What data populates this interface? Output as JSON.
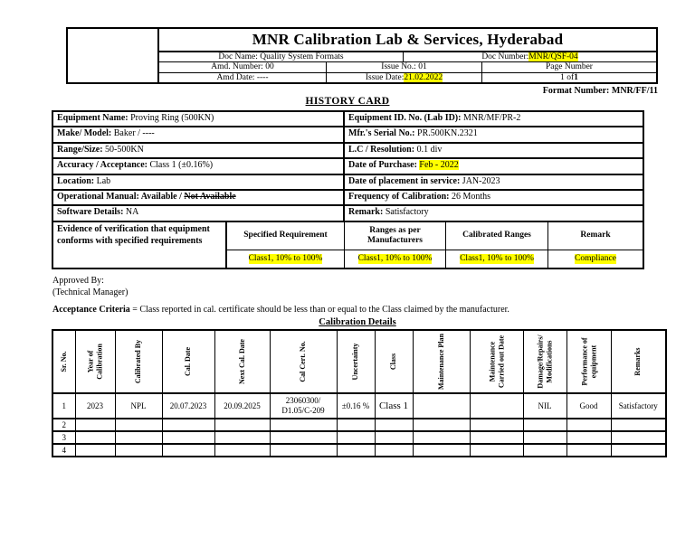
{
  "colors": {
    "highlight": "#ffff00",
    "border": "#000000",
    "background": "#ffffff"
  },
  "doc_header": {
    "title": "MNR Calibration Lab & Services, Hyderabad",
    "doc_name": "Doc Name: Quality System Formats",
    "doc_number_label": "Doc Number: ",
    "doc_number_value": "MNR/QSF-04",
    "amd_number": "Amd. Number: 00",
    "issue_no": "Issue No.: 01",
    "page_number_heading": "Page Number",
    "amd_date": "Amd Date: ----",
    "issue_date_label": "Issue Date: ",
    "issue_date_value": "21.02.2022",
    "page_value_normal": "1 of ",
    "page_value_bold": "1",
    "format_number": "Format Number: MNR/FF/11"
  },
  "history_card": {
    "heading": "HISTORY CARD",
    "rows": [
      {
        "left": {
          "label": "Equipment Name:",
          "value": " Proving Ring (500KN)"
        },
        "right": {
          "label": "Equipment ID. No. (Lab ID):",
          "value": " MNR/MF/PR-2"
        }
      },
      {
        "left": {
          "label": "Make/ Model:",
          "value": " Baker / ----"
        },
        "right": {
          "label": "Mfr.'s Serial  No.:",
          "value": " PR.500KN.2321"
        }
      },
      {
        "left": {
          "label": "Range/Size:",
          "value": " 50-500KN"
        },
        "right": {
          "label": "L.C / Resolution:",
          "value": " 0.1 div"
        }
      },
      {
        "left": {
          "label": "Accuracy / Acceptance:",
          "value": " Class 1 (±0.16%)"
        },
        "right": {
          "label": "Date of Purchase: ",
          "value": "Feb - 2022"
        }
      },
      {
        "left": {
          "label": "Location:",
          "value": " Lab"
        },
        "right": {
          "label": "Date of placement in service:",
          "value": " JAN-2023"
        }
      },
      {
        "left": {
          "label": "Operational Manual:",
          "value": " Available / ",
          "strike": "Not Available"
        },
        "right": {
          "label": "Frequency of Calibration:",
          "value": " 26 Months"
        }
      },
      {
        "left": {
          "label": "Software Details:",
          "value": " NA"
        },
        "right": {
          "label": "Remark:",
          "value": " Satisfactory"
        }
      }
    ],
    "evidence": {
      "label": "Evidence of verification that equipment conforms with specified requirements",
      "headers": [
        "Specified Requirement",
        "Ranges as per Manufacturers",
        "Calibrated Ranges",
        "Remark"
      ],
      "values": [
        "Class1, 10% to 100%",
        "Class1, 10% to 100%",
        "Class1, 10% to 100%",
        "Compliance"
      ]
    }
  },
  "approval": {
    "line1": "Approved By:",
    "line2": "(Technical Manager)"
  },
  "acceptance": {
    "label": "Acceptance Criteria",
    "text": " = Class reported in cal. certificate should be less than or equal to the Class claimed by the manufacturer."
  },
  "calibration": {
    "heading": "Calibration Details",
    "columns": [
      "Sr. No.",
      "Year of Calibration",
      "Calibrated By",
      "Cal. Date",
      "Next Cal. Date",
      "Cal Cert. No.",
      "Uncertainty",
      "Class",
      "Maintenance Plan",
      "Maintenance Carried out Date",
      "Damage/Repairs/ Modifications",
      "Performance of equipment",
      "Remarks"
    ],
    "rows": [
      [
        "1",
        "2023",
        "NPL",
        "20.07.2023",
        "20.09.2025",
        "23060300/\nD1.05/C-209",
        "±0.16 %",
        "Class 1",
        "",
        "",
        "NIL",
        "Good",
        "Satisfactory"
      ],
      [
        "2",
        "",
        "",
        "",
        "",
        "",
        "",
        "",
        "",
        "",
        "",
        "",
        ""
      ],
      [
        "3",
        "",
        "",
        "",
        "",
        "",
        "",
        "",
        "",
        "",
        "",
        "",
        ""
      ],
      [
        "4",
        "",
        "",
        "",
        "",
        "",
        "",
        "",
        "",
        "",
        "",
        "",
        ""
      ]
    ]
  }
}
